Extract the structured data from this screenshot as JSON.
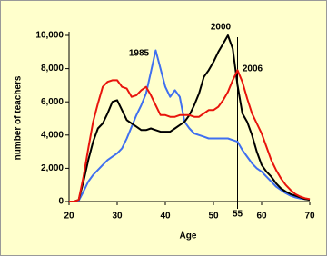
{
  "chart_data": {
    "type": "line",
    "xlabel": "Age",
    "ylabel": "number of teachers",
    "x": [
      20,
      21,
      22,
      23,
      24,
      25,
      26,
      27,
      28,
      29,
      30,
      31,
      32,
      33,
      34,
      35,
      36,
      37,
      38,
      39,
      40,
      41,
      42,
      43,
      44,
      45,
      46,
      47,
      48,
      49,
      50,
      51,
      52,
      53,
      54,
      55,
      56,
      57,
      58,
      59,
      60,
      61,
      62,
      63,
      64,
      65,
      66,
      67,
      68,
      69,
      70
    ],
    "series": [
      {
        "name": "1985",
        "color": "#3f6ff0",
        "values": [
          0,
          0,
          50,
          600,
          1200,
          1600,
          1900,
          2200,
          2500,
          2700,
          2900,
          3200,
          3800,
          4500,
          5200,
          5800,
          6500,
          7800,
          9100,
          8000,
          6900,
          6300,
          6700,
          6300,
          4800,
          4400,
          4100,
          4000,
          3900,
          3800,
          3800,
          3800,
          3800,
          3800,
          3700,
          3600,
          3100,
          2700,
          2300,
          2000,
          1800,
          1500,
          1200,
          900,
          700,
          500,
          350,
          250,
          180,
          150,
          120
        ]
      },
      {
        "name": "2000",
        "color": "#000000",
        "values": [
          0,
          0,
          100,
          1200,
          2500,
          3600,
          4400,
          4700,
          5300,
          6000,
          6100,
          5500,
          4900,
          4700,
          4500,
          4300,
          4300,
          4400,
          4300,
          4200,
          4200,
          4200,
          4400,
          4600,
          4800,
          5200,
          5800,
          6500,
          7500,
          7900,
          8400,
          9000,
          9500,
          10000,
          9200,
          7000,
          5300,
          4800,
          4000,
          3000,
          2200,
          1800,
          1500,
          1100,
          800,
          600,
          450,
          350,
          250,
          150,
          100
        ]
      },
      {
        "name": "2006",
        "color": "#e8140c",
        "values": [
          0,
          0,
          100,
          1500,
          3200,
          4800,
          5900,
          6900,
          7200,
          7300,
          7300,
          6900,
          6800,
          6300,
          6400,
          6700,
          6900,
          6400,
          5800,
          5200,
          5200,
          5100,
          5100,
          5200,
          5200,
          5200,
          5100,
          5100,
          5300,
          5500,
          5500,
          5700,
          6100,
          6600,
          7300,
          7900,
          7200,
          6200,
          5300,
          4700,
          4100,
          3300,
          2500,
          1900,
          1400,
          1000,
          700,
          450,
          300,
          200,
          150
        ]
      }
    ],
    "xlim": [
      20,
      70
    ],
    "xticks": [
      20,
      30,
      40,
      50,
      60,
      70
    ],
    "ylim": [
      0,
      10000
    ],
    "yticks": [
      0,
      {
        "value": 2000,
        "label": "2,000"
      },
      {
        "value": 4000,
        "label": "4,000"
      },
      {
        "value": 6000,
        "label": "6,000"
      },
      {
        "value": 8000,
        "label": "8,000"
      },
      {
        "value": 10000,
        "label": "10,000"
      }
    ],
    "vline": 55
  }
}
